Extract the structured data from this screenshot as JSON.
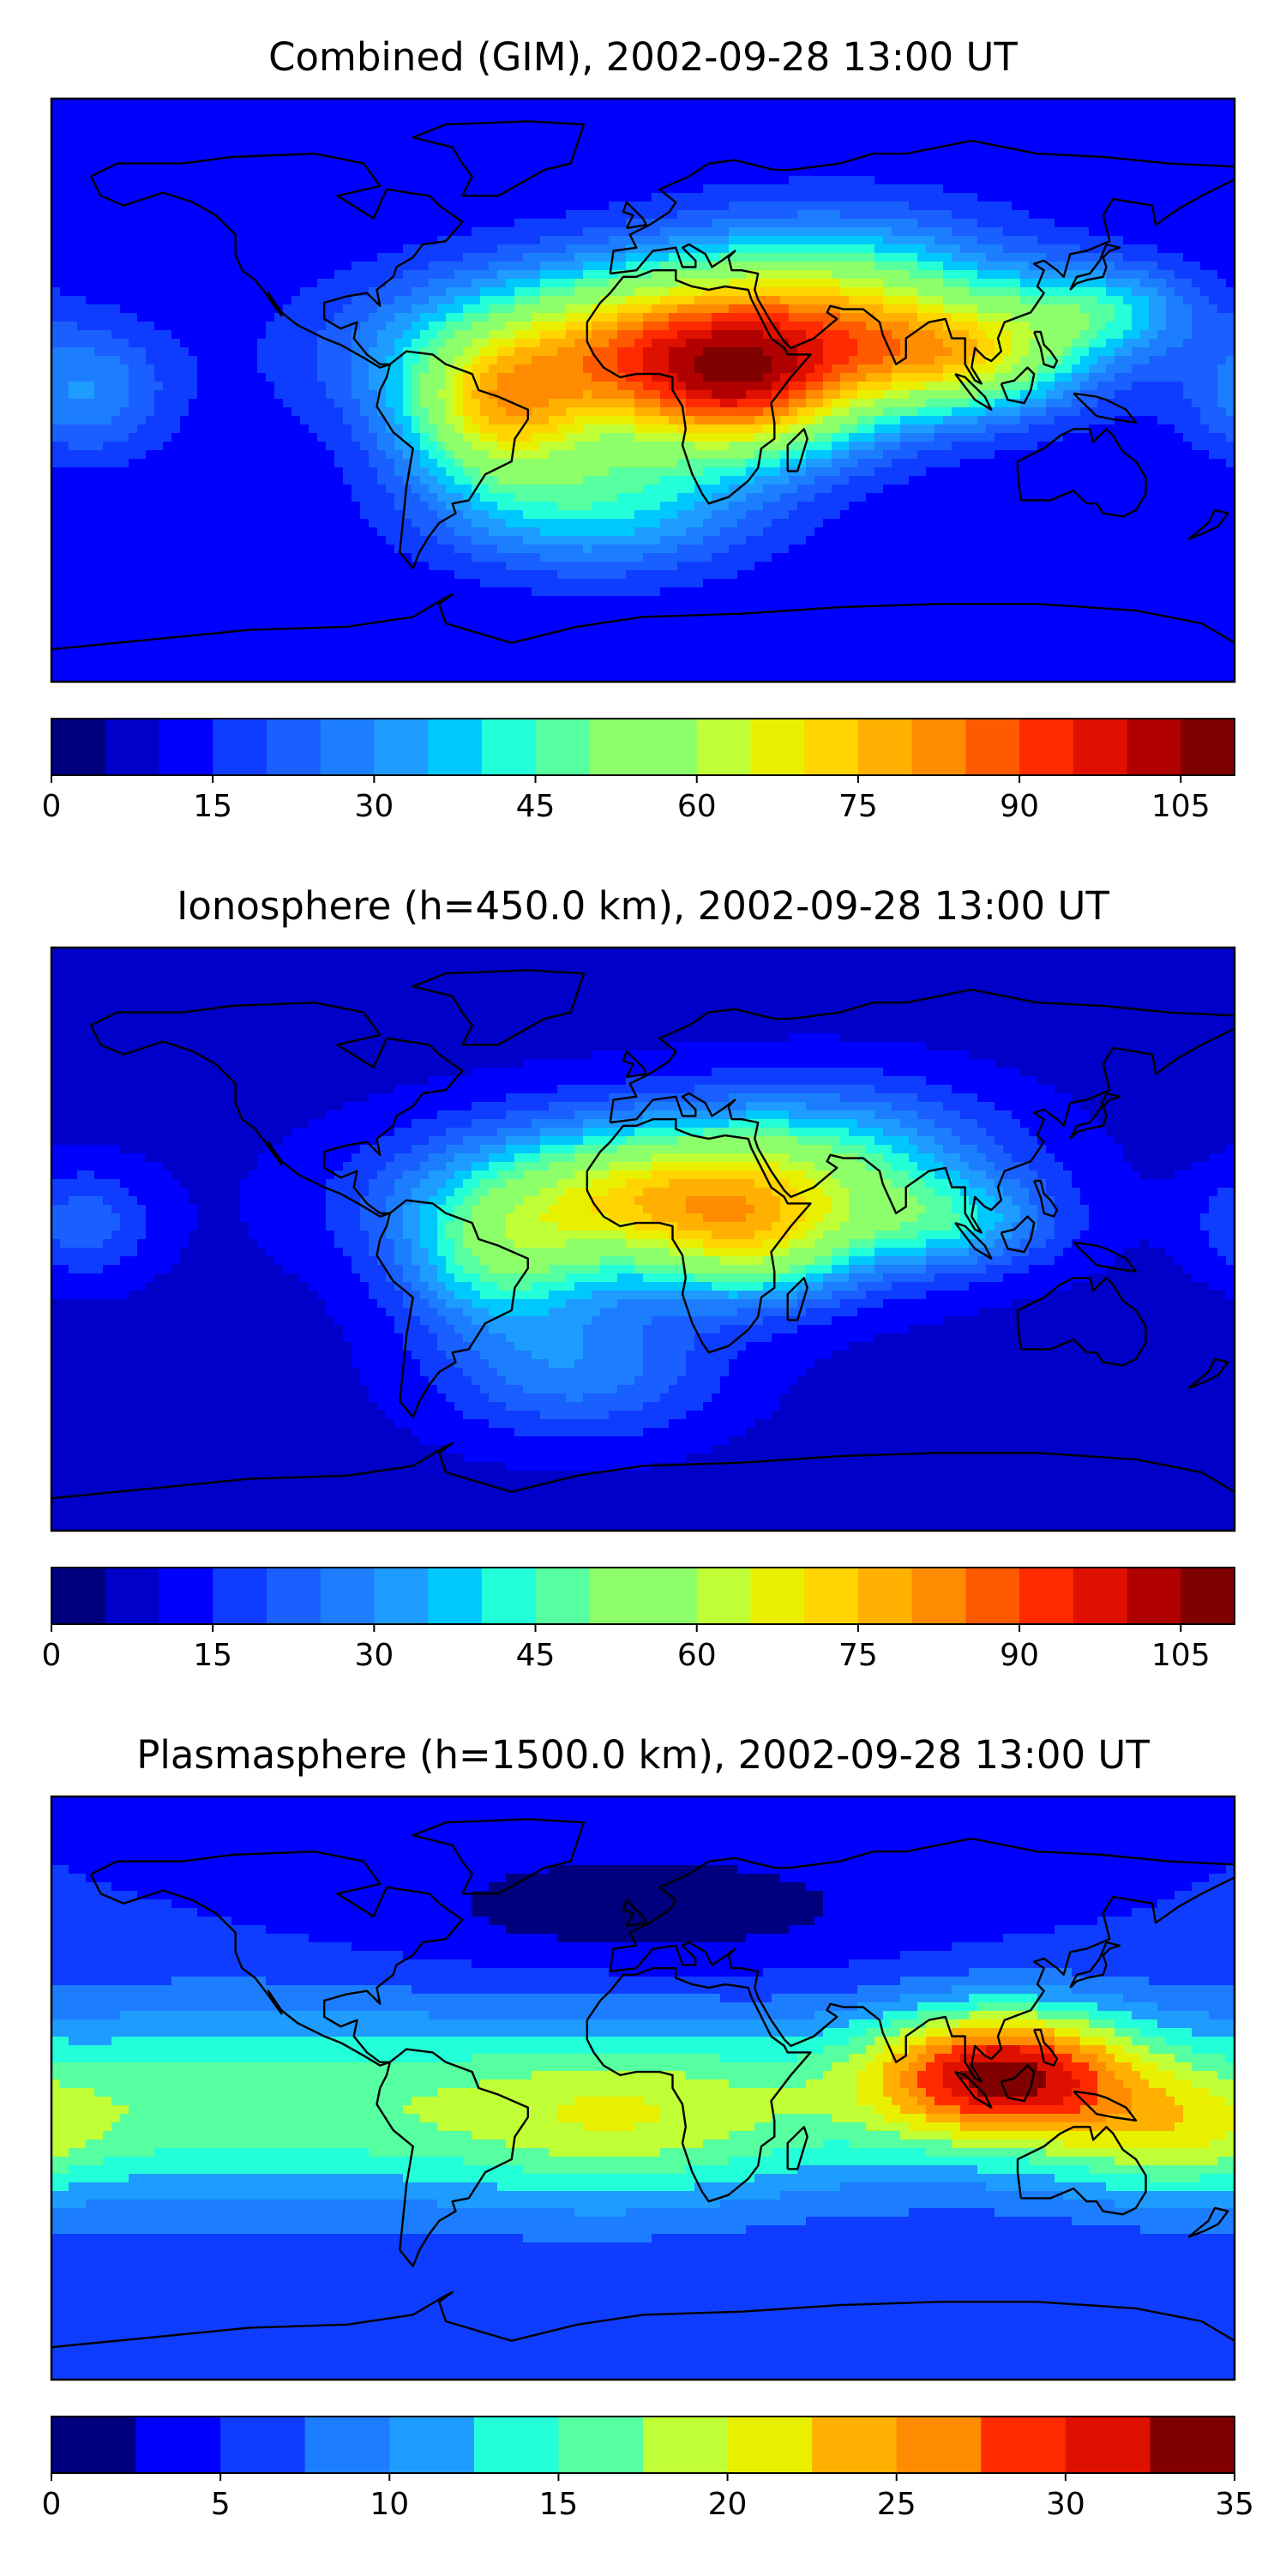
{
  "panels": [
    {
      "title": "Combined (GIM), 2002-09-28 13:00 UT",
      "colorbar": {
        "ticks": [
          "0",
          "15",
          "30",
          "45",
          "60",
          "75",
          "90",
          "105"
        ],
        "min": 0,
        "max": 110,
        "step": 5
      },
      "field": {
        "background": 10,
        "blobs": [
          {
            "lon": 10,
            "lat": 12,
            "amp": 70,
            "slon": 55,
            "slat": 18
          },
          {
            "lon": 30,
            "lat": -5,
            "amp": 35,
            "slon": 25,
            "slat": 14
          },
          {
            "lon": -45,
            "lat": -8,
            "amp": 40,
            "slon": 20,
            "slat": 15
          },
          {
            "lon": 100,
            "lat": 10,
            "amp": 35,
            "slon": 25,
            "slat": 12
          },
          {
            "lon": 140,
            "lat": 25,
            "amp": 25,
            "slon": 20,
            "slat": 10
          },
          {
            "lon": -15,
            "lat": -35,
            "amp": 30,
            "slon": 35,
            "slat": 15
          },
          {
            "lon": 60,
            "lat": 30,
            "amp": 30,
            "slon": 40,
            "slat": 18
          },
          {
            "lon": -170,
            "lat": 0,
            "amp": 20,
            "slon": 18,
            "slat": 15
          }
        ]
      }
    },
    {
      "title": "Ionosphere  (h=450.0 km), 2002-09-28 13:00 UT",
      "colorbar": {
        "ticks": [
          "0",
          "15",
          "30",
          "45",
          "60",
          "75",
          "90",
          "105"
        ],
        "min": 0,
        "max": 110,
        "step": 5
      },
      "field": {
        "background": 8,
        "blobs": [
          {
            "lon": 10,
            "lat": 12,
            "amp": 65,
            "slon": 50,
            "slat": 17
          },
          {
            "lon": 35,
            "lat": -5,
            "amp": 20,
            "slon": 20,
            "slat": 12
          },
          {
            "lon": -45,
            "lat": -8,
            "amp": 25,
            "slon": 20,
            "slat": 15
          },
          {
            "lon": 95,
            "lat": 5,
            "amp": 20,
            "slon": 22,
            "slat": 10
          },
          {
            "lon": -20,
            "lat": -40,
            "amp": 20,
            "slon": 30,
            "slat": 15
          },
          {
            "lon": 60,
            "lat": 30,
            "amp": 15,
            "slon": 35,
            "slat": 15
          },
          {
            "lon": -170,
            "lat": 5,
            "amp": 15,
            "slon": 15,
            "slat": 12
          }
        ]
      }
    },
    {
      "title": "Plasmasphere (h=1500.0 km), 2002-09-28 13:00 UT",
      "colorbar": {
        "ticks": [
          "0",
          "5",
          "10",
          "15",
          "20",
          "25",
          "30",
          "35"
        ],
        "min": 0,
        "max": 35,
        "step": 2.5
      },
      "field": {
        "background": 5,
        "blobs": [
          {
            "lon": 110,
            "lat": 5,
            "amp": 22,
            "slon": 28,
            "slat": 14
          },
          {
            "lon": 60,
            "lat": -5,
            "amp": 8,
            "slon": 60,
            "slat": 20
          },
          {
            "lon": -120,
            "lat": -5,
            "amp": 12,
            "slon": 70,
            "slat": 22
          },
          {
            "lon": -10,
            "lat": -10,
            "amp": 8,
            "slon": 40,
            "slat": 20
          },
          {
            "lon": 160,
            "lat": -15,
            "amp": 8,
            "slon": 25,
            "slat": 14
          },
          {
            "lon": 0,
            "lat": 55,
            "amp": -4,
            "slon": 60,
            "slat": 15
          }
        ]
      }
    }
  ],
  "colormap": [
    "#00007f",
    "#0000c8",
    "#0000ff",
    "#0f3dff",
    "#1a5fff",
    "#1c7eff",
    "#1e9cff",
    "#00c8ff",
    "#23ffd8",
    "#56ff9f",
    "#8cff6a",
    "#c0ff36",
    "#e8f000",
    "#ffd400",
    "#ffb000",
    "#ff8c00",
    "#ff5a00",
    "#ff2a00",
    "#e01000",
    "#b00000",
    "#800000"
  ]
}
